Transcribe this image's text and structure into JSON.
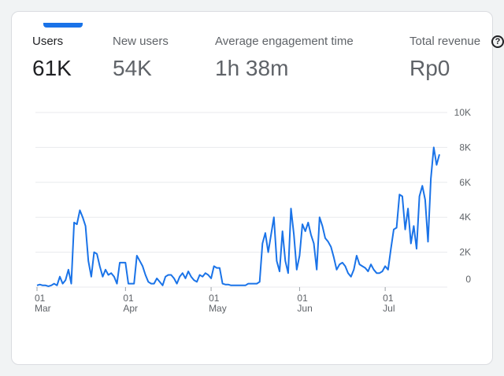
{
  "metrics": [
    {
      "label": "Users",
      "value": "61K",
      "active": true
    },
    {
      "label": "New users",
      "value": "54K",
      "active": false
    },
    {
      "label": "Average engagement time",
      "value": "1h 38m",
      "active": false
    },
    {
      "label": "Total revenue",
      "value": "Rp0",
      "active": false
    }
  ],
  "help_icon": {
    "name": "help-icon",
    "glyph": "?"
  },
  "colors": {
    "line": "#1a73e8",
    "accent": "#1a73e8",
    "grid": "#e8eaed"
  },
  "chart_data": {
    "type": "line",
    "series": [
      {
        "values": [
          100,
          150,
          100,
          100,
          50,
          100,
          200,
          100,
          600,
          200,
          400,
          1000,
          200,
          3700,
          3600,
          4400,
          4000,
          3500,
          1500,
          600,
          2000,
          1900,
          1200,
          600,
          1000,
          700,
          800,
          600,
          200,
          1400,
          1400,
          1400,
          200,
          200,
          200,
          1800,
          1500,
          1200,
          700,
          300,
          200,
          200,
          500,
          300,
          100,
          600,
          700,
          700,
          500,
          200,
          600,
          800,
          500,
          900,
          600,
          400,
          300,
          700,
          600,
          800,
          700,
          500,
          1200,
          1100,
          1100,
          200,
          150,
          150,
          100,
          100,
          100,
          100,
          100,
          100,
          200,
          200,
          200,
          200,
          300,
          2500,
          3100,
          2000,
          3000,
          4000,
          1500,
          900,
          3200,
          1500,
          800,
          4500,
          3000,
          1000,
          1800,
          3600,
          3200,
          3700,
          3000,
          2500,
          1000,
          4000,
          3500,
          2800,
          2600,
          2300,
          1700,
          1000,
          1300,
          1400,
          1200,
          800,
          600,
          1000,
          1800,
          1300,
          1200,
          1100,
          900,
          1300,
          1000,
          800,
          800,
          900,
          1200,
          1000,
          2200,
          3300,
          3400,
          5300,
          5200,
          3300,
          4500,
          2500,
          3500,
          2200,
          5200,
          5800,
          5000,
          2600,
          6200,
          8000,
          7000,
          7600
        ]
      }
    ],
    "x_ticks": [
      {
        "day": "01",
        "month": "Mar",
        "index": 0
      },
      {
        "day": "01",
        "month": "Apr",
        "index": 31
      },
      {
        "day": "01",
        "month": "May",
        "index": 61
      },
      {
        "day": "01",
        "month": "Jun",
        "index": 92
      },
      {
        "day": "01",
        "month": "Jul",
        "index": 122
      }
    ],
    "y_ticks": [
      {
        "label": "10K",
        "value": 10000
      },
      {
        "label": "8K",
        "value": 8000
      },
      {
        "label": "6K",
        "value": 6000
      },
      {
        "label": "4K",
        "value": 4000
      },
      {
        "label": "2K",
        "value": 2000
      },
      {
        "label": "0",
        "value": 0
      }
    ],
    "ylim": [
      0,
      10000
    ],
    "grid": true
  }
}
